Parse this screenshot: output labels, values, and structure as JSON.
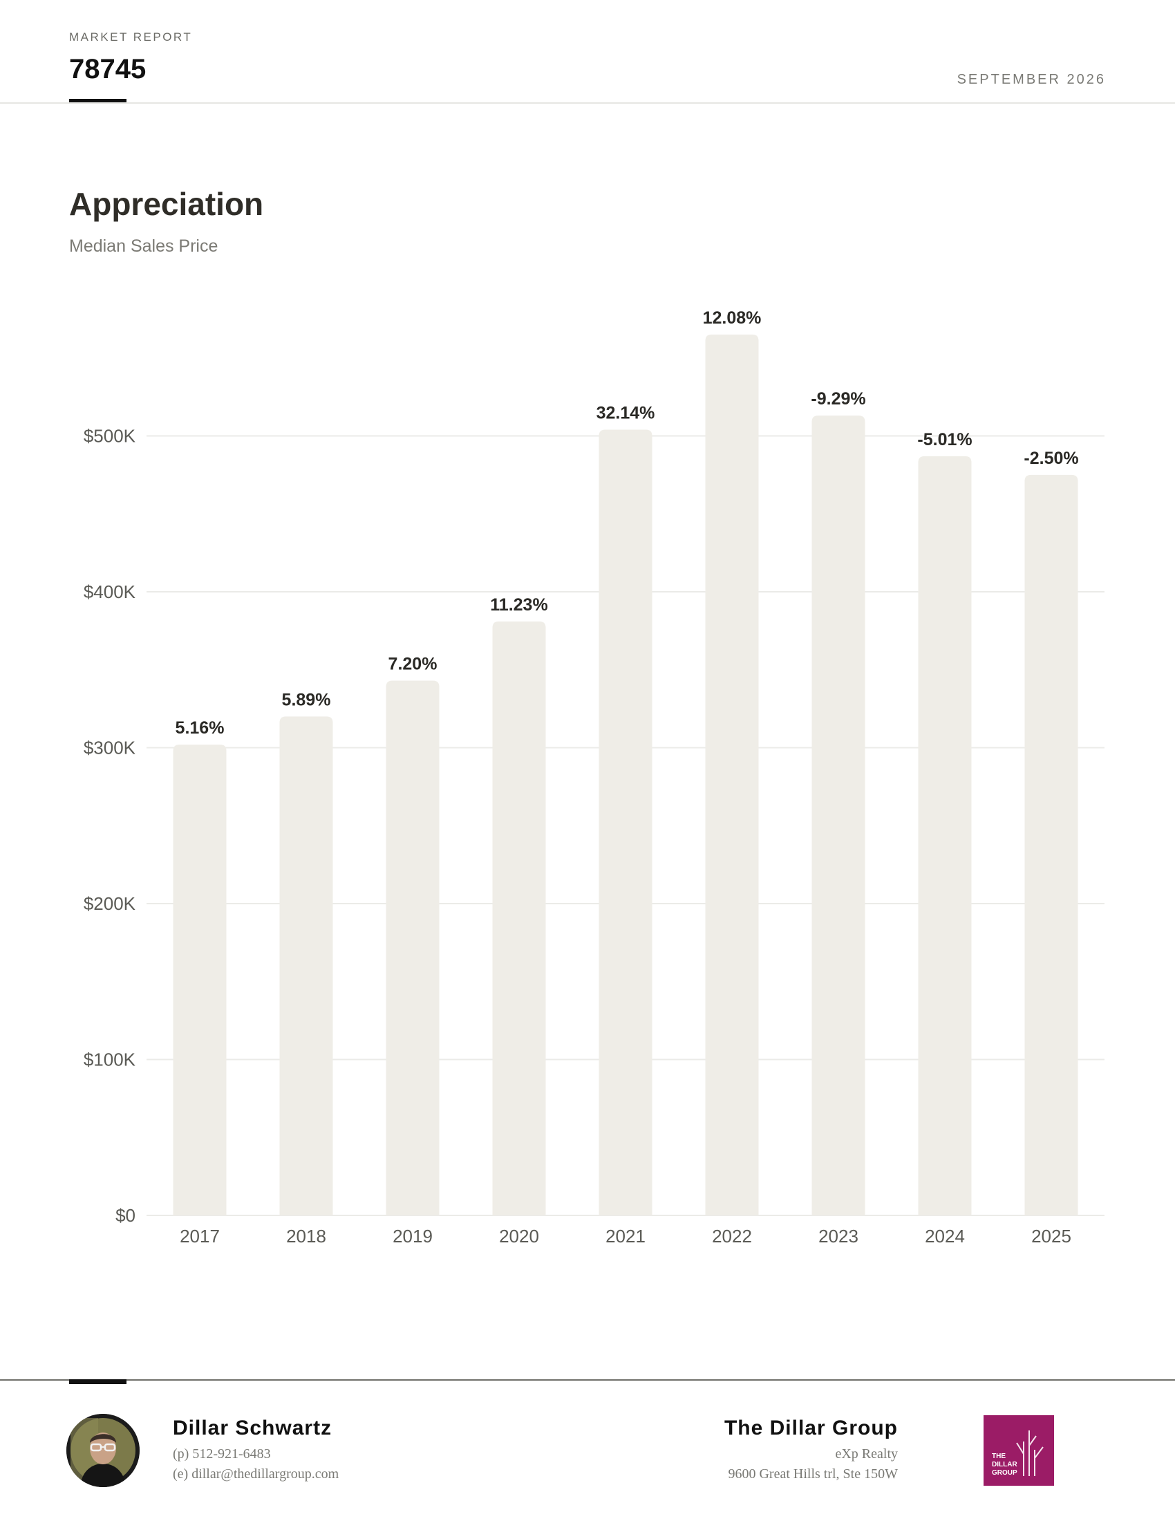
{
  "header": {
    "kicker": "MARKET REPORT",
    "zip": "78745",
    "date": "SEPTEMBER 2026"
  },
  "section": {
    "title": "Appreciation",
    "subtitle": "Median Sales Price"
  },
  "chart_data": {
    "type": "bar",
    "title": "Appreciation",
    "subtitle": "Median Sales Price",
    "xlabel": "",
    "ylabel": "",
    "categories": [
      "2017",
      "2018",
      "2019",
      "2020",
      "2021",
      "2022",
      "2023",
      "2024",
      "2025"
    ],
    "values": [
      302000,
      320000,
      343000,
      381000,
      504000,
      565000,
      513000,
      487000,
      475000
    ],
    "data_labels": [
      "5.16%",
      "5.89%",
      "7.20%",
      "11.23%",
      "32.14%",
      "12.08%",
      "-9.29%",
      "-5.01%",
      "-2.50%"
    ],
    "y_ticks": [
      0,
      100000,
      200000,
      300000,
      400000,
      500000
    ],
    "y_tick_labels": [
      "$0",
      "$100K",
      "$200K",
      "$300K",
      "$400K",
      "$500K"
    ],
    "ylim": [
      0,
      600000
    ],
    "grid": true,
    "legend": "none",
    "bar_color": "#efede7",
    "grid_color": "#ebebe8"
  },
  "footer": {
    "agent_name": "Dillar Schwartz",
    "agent_phone": "(p) 512-921-6483",
    "agent_email": "(e) dillar@thedillargroup.com",
    "brokerage_name": "The Dillar Group",
    "brokerage_company": "eXp Realty",
    "brokerage_address": "9600 Great Hills trl, Ste 150W",
    "logo_text": [
      "THE",
      "DILLAR",
      "GROUP"
    ],
    "logo_color": "#9b1c66"
  }
}
